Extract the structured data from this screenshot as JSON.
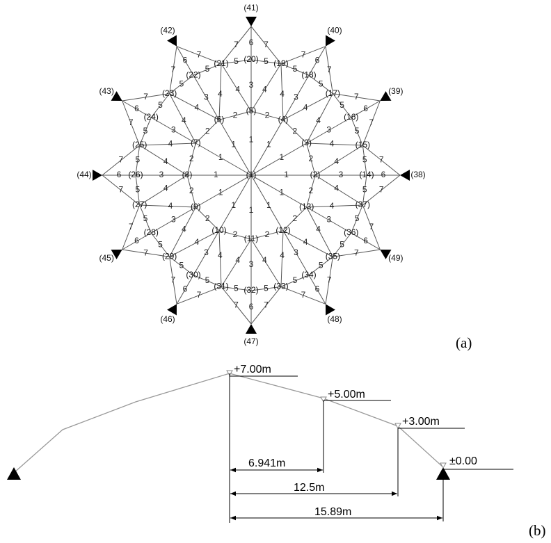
{
  "figure_a": {
    "panel_label": "(a)",
    "nodes": [
      "(1)",
      "(2)",
      "(3)",
      "(4)",
      "(5)",
      "(6)",
      "(7)",
      "(8)",
      "(9)",
      "(10)",
      "(11)",
      "(12)",
      "(13)",
      "(14)",
      "(15)",
      "(16)",
      "(17)",
      "(18)",
      "(19)",
      "(20)",
      "(21)",
      "(22)",
      "(23)",
      "(24)",
      "(25)",
      "(26)",
      "(27)",
      "(28)",
      "(29)",
      "(30)",
      "(31)",
      "(32)",
      "(33)",
      "(34)",
      "(35)",
      "(36)",
      "(37)",
      "(38)",
      "(39)",
      "(40)",
      "(41)",
      "(42)",
      "(43)",
      "(44)",
      "(45)",
      "(46)",
      "(47)",
      "(48)",
      "(49)"
    ],
    "member_labels": {
      "spokes": [
        1,
        1,
        1,
        1,
        1,
        1,
        1,
        1,
        1,
        1,
        1,
        1
      ],
      "ring1_edges": [
        2,
        2,
        2,
        2,
        2,
        2,
        2,
        2,
        2,
        2,
        2,
        2
      ],
      "ring1_radials": [
        3,
        3,
        3,
        3,
        3,
        3,
        3,
        3,
        3,
        3,
        3,
        3
      ],
      "ring1_diagonals": [
        4,
        4,
        4,
        4,
        4,
        4,
        4,
        4,
        4,
        4,
        4,
        4,
        4,
        4,
        4,
        4,
        4,
        4,
        4,
        4,
        4,
        4,
        4,
        4
      ],
      "ring2_edges": [
        5,
        5,
        5,
        5,
        5,
        5,
        5,
        5,
        5,
        5,
        5,
        5,
        5,
        5,
        5,
        5,
        5,
        5,
        5,
        5,
        5,
        5,
        5,
        5
      ],
      "support_radials": [
        6,
        6,
        6,
        6,
        6,
        6,
        6,
        6,
        6,
        6,
        6,
        6
      ],
      "support_diagonals": [
        7,
        7,
        7,
        7,
        7,
        7,
        7,
        7,
        7,
        7,
        7,
        7,
        7,
        7,
        7,
        7,
        7,
        7,
        7,
        7,
        7,
        7,
        7,
        7
      ]
    }
  },
  "figure_b": {
    "panel_label": "(b)",
    "elevations": [
      "+7.00m",
      "+5.00m",
      "+3.00m",
      "±0.00"
    ],
    "dimensions": [
      "6.941m",
      "12.5m",
      "15.89m"
    ]
  }
}
